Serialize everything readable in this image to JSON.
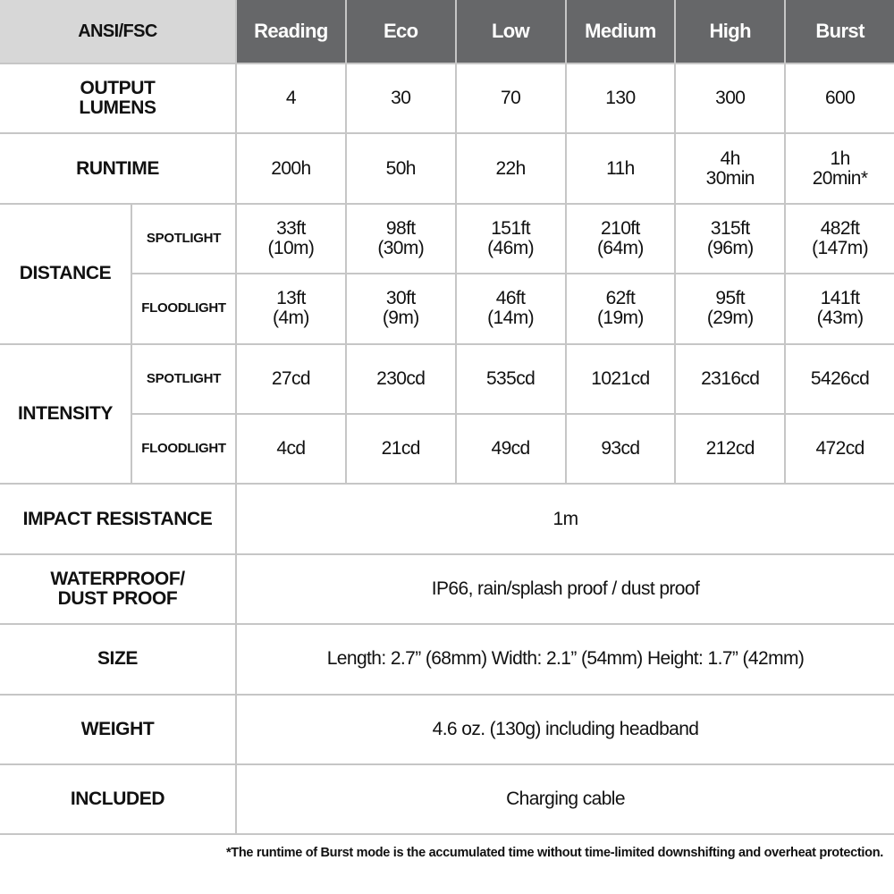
{
  "header": {
    "label": "ANSI/FSC",
    "modes": [
      "Reading",
      "Eco",
      "Low",
      "Medium",
      "High",
      "Burst"
    ]
  },
  "output": {
    "label": "OUTPUT\nLUMENS",
    "values": [
      "4",
      "30",
      "70",
      "130",
      "300",
      "600"
    ]
  },
  "runtime": {
    "label": "RUNTIME",
    "values": [
      "200h",
      "50h",
      "22h",
      "11h",
      "4h\n30min",
      "1h\n20min*"
    ]
  },
  "distance": {
    "label": "DISTANCE",
    "spot": {
      "label": "SPOTLIGHT",
      "values": [
        "33ft\n(10m)",
        "98ft\n(30m)",
        "151ft\n(46m)",
        "210ft\n(64m)",
        "315ft\n(96m)",
        "482ft\n(147m)"
      ]
    },
    "flood": {
      "label": "FLOODLIGHT",
      "values": [
        "13ft\n(4m)",
        "30ft\n(9m)",
        "46ft\n(14m)",
        "62ft\n(19m)",
        "95ft\n(29m)",
        "141ft\n(43m)"
      ]
    }
  },
  "intensity": {
    "label": "INTENSITY",
    "spot": {
      "label": "SPOTLIGHT",
      "values": [
        "27cd",
        "230cd",
        "535cd",
        "1021cd",
        "2316cd",
        "5426cd"
      ]
    },
    "flood": {
      "label": "FLOODLIGHT",
      "values": [
        "4cd",
        "21cd",
        "49cd",
        "93cd",
        "212cd",
        "472cd"
      ]
    }
  },
  "specs": [
    {
      "label": "IMPACT RESISTANCE",
      "value": "1m"
    },
    {
      "label": "WATERPROOF/\nDUST PROOF",
      "value": "IP66, rain/splash proof / dust proof"
    },
    {
      "label": "SIZE",
      "value": "Length: 2.7” (68mm)  Width: 2.1” (54mm)  Height: 1.7” (42mm)"
    },
    {
      "label": "WEIGHT",
      "value": "4.6 oz. (130g) including headband"
    },
    {
      "label": "INCLUDED",
      "value": "Charging cable"
    }
  ],
  "footnote": "*The runtime of Burst mode is the accumulated time without time-limited downshifting and overheat protection.",
  "colors": {
    "header_dark": "#666769",
    "header_light": "#d7d7d7",
    "grid": "#c6c6c6"
  }
}
